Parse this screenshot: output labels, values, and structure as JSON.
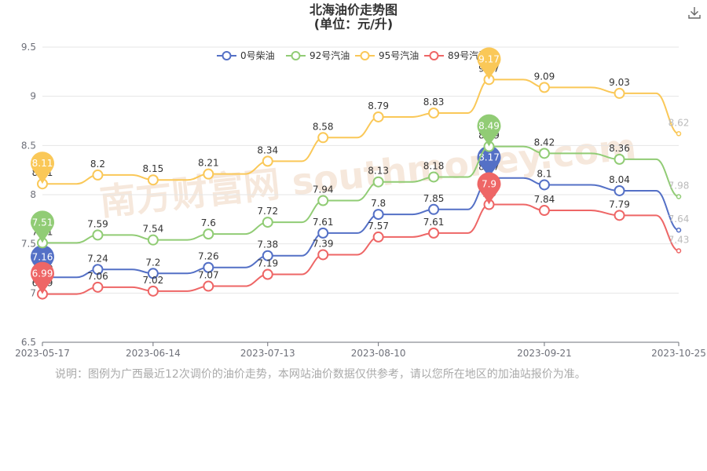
{
  "header": {
    "title": "北海油价走势图",
    "subtitle": "(单位：元/升)",
    "download_icon": "download-icon"
  },
  "note": "说明：图例为广西最近12次调价的油价走势，本网站油价数据仅供参考，请以您所在地区的加油站报价为准。",
  "watermark": "南方财富网 southmoney.com",
  "chart_data": {
    "type": "line",
    "ylim": [
      6.5,
      9.5
    ],
    "yticks": [
      "6.5",
      "7",
      "7.5",
      "8",
      "8.5",
      "9",
      "9.5"
    ],
    "xtick_labels": [
      "2023-05-17",
      "2023-06-14",
      "2023-07-13",
      "2023-08-10",
      "2023-09-21",
      "2023-10-25"
    ],
    "x": [
      "2023-05-17",
      "2023-05-31",
      "2023-06-14",
      "2023-06-28",
      "2023-07-13",
      "2023-07-27",
      "2023-08-10",
      "2023-08-24",
      "2023-09-07",
      "2023-09-21",
      "2023-10-10",
      "2023-10-25"
    ],
    "legend_position": "top-center",
    "series": [
      {
        "name": "0号柴油",
        "color": "#5470c6",
        "values": [
          7.16,
          7.24,
          7.2,
          7.26,
          7.38,
          7.61,
          7.8,
          7.85,
          8.17,
          8.1,
          8.04,
          7.64
        ],
        "max_label": "8.17",
        "min_label": "7.16"
      },
      {
        "name": "92号汽油",
        "color": "#91cc75",
        "values": [
          7.51,
          7.59,
          7.54,
          7.6,
          7.72,
          7.94,
          8.13,
          8.18,
          8.49,
          8.42,
          8.36,
          7.98
        ],
        "max_label": "8.49",
        "min_label": "7.51"
      },
      {
        "name": "95号汽油",
        "color": "#fac858",
        "values": [
          8.11,
          8.2,
          8.15,
          8.21,
          8.34,
          8.58,
          8.79,
          8.83,
          9.17,
          9.09,
          9.03,
          8.62
        ],
        "max_label": "9.17",
        "min_label": "8.11"
      },
      {
        "name": "89号汽油",
        "color": "#ee6666",
        "values": [
          6.99,
          7.06,
          7.02,
          7.07,
          7.19,
          7.39,
          7.57,
          7.61,
          7.9,
          7.84,
          7.79,
          7.43
        ],
        "max_label": "7.9",
        "min_label": "6.99"
      }
    ]
  }
}
